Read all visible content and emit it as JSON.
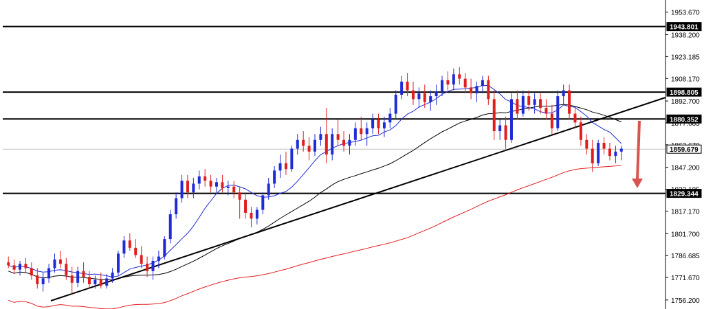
{
  "chart_data": {
    "type": "candlestick",
    "ylim": [
      1750,
      1962
    ],
    "y_ticks": [
      "1953.670",
      "1938.200",
      "1923.185",
      "1908.170",
      "1892.700",
      "1877.685",
      "1862.670",
      "1847.200",
      "1832.185",
      "1817.170",
      "1801.700",
      "1786.685",
      "1771.670",
      "1756.200"
    ],
    "price_labels": [
      {
        "value": 1943.801,
        "text": "1943.801",
        "kind": "level"
      },
      {
        "value": 1898.805,
        "text": "1898.805",
        "kind": "level"
      },
      {
        "value": 1880.352,
        "text": "1880.352",
        "kind": "level"
      },
      {
        "value": 1859.679,
        "text": "1859.679",
        "kind": "current"
      },
      {
        "value": 1829.344,
        "text": "1829.344",
        "kind": "level"
      }
    ],
    "horizontal_levels": [
      1943.801,
      1898.805,
      1880.352,
      1829.344
    ],
    "current_price": 1859.679,
    "candles": [
      [
        1782,
        1786,
        1778,
        1780
      ],
      [
        1780,
        1784,
        1774,
        1777
      ],
      [
        1777,
        1783,
        1773,
        1781
      ],
      [
        1781,
        1785,
        1775,
        1778
      ],
      [
        1778,
        1782,
        1770,
        1773
      ],
      [
        1773,
        1778,
        1764,
        1767
      ],
      [
        1767,
        1775,
        1762,
        1771
      ],
      [
        1771,
        1781,
        1768,
        1778
      ],
      [
        1778,
        1788,
        1775,
        1784
      ],
      [
        1784,
        1790,
        1778,
        1781
      ],
      [
        1781,
        1785,
        1770,
        1773
      ],
      [
        1773,
        1779,
        1760,
        1768
      ],
      [
        1768,
        1779,
        1765,
        1776
      ],
      [
        1776,
        1782,
        1768,
        1772
      ],
      [
        1772,
        1776,
        1764,
        1767
      ],
      [
        1767,
        1773,
        1764,
        1770
      ],
      [
        1770,
        1775,
        1764,
        1766
      ],
      [
        1766,
        1774,
        1764,
        1771
      ],
      [
        1771,
        1778,
        1768,
        1775
      ],
      [
        1775,
        1790,
        1773,
        1788
      ],
      [
        1788,
        1800,
        1785,
        1797
      ],
      [
        1797,
        1802,
        1790,
        1792
      ],
      [
        1792,
        1798,
        1785,
        1787
      ],
      [
        1787,
        1793,
        1778,
        1781
      ],
      [
        1781,
        1786,
        1772,
        1776
      ],
      [
        1776,
        1786,
        1770,
        1783
      ],
      [
        1783,
        1790,
        1778,
        1786
      ],
      [
        1786,
        1800,
        1784,
        1798
      ],
      [
        1798,
        1818,
        1795,
        1815
      ],
      [
        1815,
        1830,
        1812,
        1826
      ],
      [
        1826,
        1842,
        1823,
        1838
      ],
      [
        1838,
        1842,
        1826,
        1830
      ],
      [
        1830,
        1840,
        1826,
        1836
      ],
      [
        1836,
        1845,
        1832,
        1841
      ],
      [
        1841,
        1846,
        1834,
        1838
      ],
      [
        1838,
        1842,
        1830,
        1834
      ],
      [
        1834,
        1840,
        1830,
        1837
      ],
      [
        1837,
        1842,
        1830,
        1833
      ],
      [
        1833,
        1838,
        1828,
        1834
      ],
      [
        1834,
        1838,
        1826,
        1830
      ],
      [
        1830,
        1834,
        1812,
        1825
      ],
      [
        1825,
        1830,
        1812,
        1816
      ],
      [
        1816,
        1820,
        1806,
        1812
      ],
      [
        1812,
        1820,
        1808,
        1818
      ],
      [
        1818,
        1830,
        1815,
        1828
      ],
      [
        1828,
        1840,
        1825,
        1836
      ],
      [
        1836,
        1848,
        1833,
        1845
      ],
      [
        1845,
        1856,
        1840,
        1850
      ],
      [
        1850,
        1858,
        1842,
        1846
      ],
      [
        1846,
        1862,
        1844,
        1860
      ],
      [
        1860,
        1870,
        1856,
        1866
      ],
      [
        1866,
        1872,
        1858,
        1862
      ],
      [
        1862,
        1868,
        1852,
        1858
      ],
      [
        1858,
        1870,
        1855,
        1866
      ],
      [
        1866,
        1875,
        1862,
        1870
      ],
      [
        1870,
        1888,
        1850,
        1856
      ],
      [
        1856,
        1874,
        1852,
        1870
      ],
      [
        1870,
        1880,
        1862,
        1866
      ],
      [
        1866,
        1872,
        1858,
        1862
      ],
      [
        1862,
        1870,
        1856,
        1866
      ],
      [
        1866,
        1878,
        1862,
        1874
      ],
      [
        1874,
        1882,
        1866,
        1870
      ],
      [
        1870,
        1878,
        1862,
        1874
      ],
      [
        1874,
        1884,
        1870,
        1880
      ],
      [
        1880,
        1884,
        1870,
        1874
      ],
      [
        1874,
        1882,
        1868,
        1878
      ],
      [
        1878,
        1888,
        1874,
        1884
      ],
      [
        1884,
        1900,
        1880,
        1897
      ],
      [
        1897,
        1910,
        1894,
        1906
      ],
      [
        1906,
        1912,
        1896,
        1900
      ],
      [
        1900,
        1906,
        1890,
        1894
      ],
      [
        1894,
        1902,
        1888,
        1898
      ],
      [
        1898,
        1904,
        1888,
        1892
      ],
      [
        1892,
        1900,
        1886,
        1896
      ],
      [
        1896,
        1904,
        1890,
        1899
      ],
      [
        1899,
        1910,
        1896,
        1907
      ],
      [
        1907,
        1913,
        1900,
        1904
      ],
      [
        1904,
        1915,
        1900,
        1911
      ],
      [
        1911,
        1916,
        1904,
        1908
      ],
      [
        1908,
        1912,
        1898,
        1902
      ],
      [
        1902,
        1908,
        1894,
        1898
      ],
      [
        1898,
        1906,
        1892,
        1903
      ],
      [
        1903,
        1910,
        1898,
        1907
      ],
      [
        1907,
        1910,
        1890,
        1894
      ],
      [
        1894,
        1900,
        1866,
        1872
      ],
      [
        1872,
        1880,
        1866,
        1876
      ],
      [
        1876,
        1882,
        1860,
        1866
      ],
      [
        1866,
        1898,
        1864,
        1894
      ],
      [
        1894,
        1900,
        1880,
        1884
      ],
      [
        1884,
        1900,
        1882,
        1896
      ],
      [
        1896,
        1900,
        1886,
        1890
      ],
      [
        1890,
        1898,
        1884,
        1894
      ],
      [
        1894,
        1898,
        1884,
        1888
      ],
      [
        1888,
        1894,
        1880,
        1884
      ],
      [
        1884,
        1890,
        1870,
        1874
      ],
      [
        1874,
        1900,
        1872,
        1896
      ],
      [
        1896,
        1904,
        1890,
        1900
      ],
      [
        1900,
        1904,
        1880,
        1884
      ],
      [
        1884,
        1888,
        1874,
        1878
      ],
      [
        1878,
        1882,
        1862,
        1866
      ],
      [
        1866,
        1870,
        1856,
        1860
      ],
      [
        1860,
        1866,
        1844,
        1850
      ],
      [
        1850,
        1866,
        1848,
        1864
      ],
      [
        1864,
        1868,
        1856,
        1860
      ],
      [
        1860,
        1864,
        1852,
        1855
      ],
      [
        1855,
        1862,
        1850,
        1858
      ],
      [
        1858,
        1862,
        1852,
        1860
      ]
    ]
  }
}
